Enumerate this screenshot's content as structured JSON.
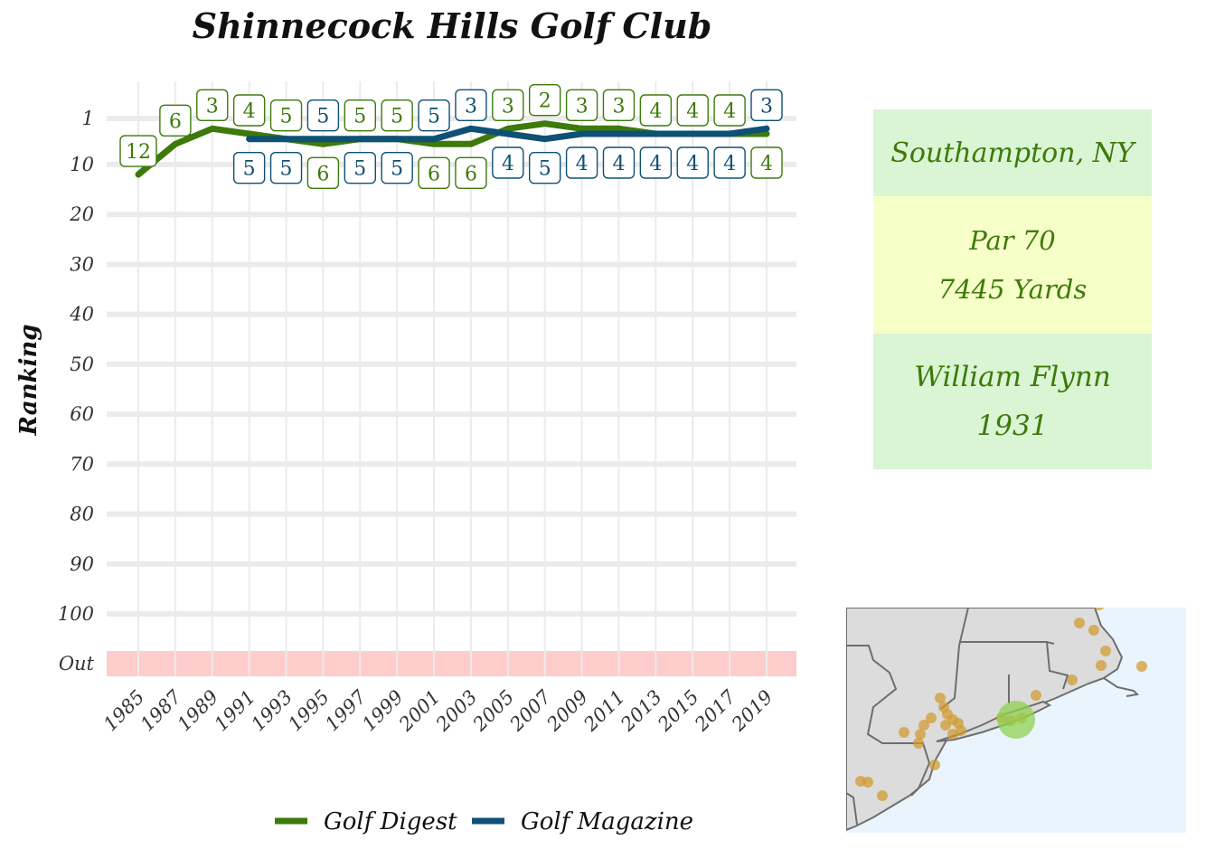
{
  "chart_data": {
    "type": "line",
    "title": "Shinnecock Hills Golf Club",
    "ylabel": "Ranking",
    "xlabel": "",
    "y_ticks": [
      "1",
      "10",
      "20",
      "30",
      "40",
      "50",
      "60",
      "70",
      "80",
      "90",
      "100",
      "Out"
    ],
    "x_ticks": [
      "1985",
      "1987",
      "1989",
      "1991",
      "1993",
      "1995",
      "1997",
      "1999",
      "2001",
      "2003",
      "2005",
      "2007",
      "2009",
      "2011",
      "2013",
      "2015",
      "2017",
      "2019"
    ],
    "series": [
      {
        "name": "Golf Digest",
        "color": "#3d7a0a",
        "x": [
          1985,
          1987,
          1989,
          1991,
          1993,
          1995,
          1997,
          1999,
          2001,
          2003,
          2005,
          2007,
          2009,
          2011,
          2013,
          2015,
          2017,
          2019
        ],
        "values": [
          12,
          6,
          3,
          4,
          5,
          6,
          5,
          5,
          6,
          6,
          3,
          2,
          3,
          3,
          4,
          4,
          4,
          4
        ],
        "labels": [
          "12",
          "6",
          "3",
          "4",
          "5",
          "6",
          "5",
          "5",
          "6",
          "6",
          "3",
          "2",
          "3",
          "3",
          "4",
          "4",
          "4",
          "4"
        ]
      },
      {
        "name": "Golf Magazine",
        "color": "#0f5075",
        "x": [
          1991,
          1993,
          1995,
          1997,
          1999,
          2001,
          2003,
          2005,
          2007,
          2009,
          2011,
          2013,
          2015,
          2017,
          2019
        ],
        "values": [
          5,
          5,
          5,
          5,
          5,
          5,
          3,
          4,
          5,
          4,
          4,
          4,
          4,
          4,
          3
        ],
        "labels": [
          "5",
          "5",
          "5",
          "5",
          "5",
          "5",
          "3",
          "4",
          "5",
          "4",
          "4",
          "4",
          "4",
          "4",
          "3"
        ]
      }
    ],
    "out_band_color": "#ffcccc",
    "grid": true,
    "legend_position": "bottom"
  },
  "info": {
    "location": "Southampton, NY",
    "par": "Par 70",
    "yards": "7445 Yards",
    "architect": "William Flynn",
    "year": "1931"
  },
  "map": {
    "land_color": "#dcdcdc",
    "water_color": "#eaf4fc",
    "border_color": "#6e6e6e",
    "course_color": "#d19a2e",
    "highlight_color": "#8fd14f"
  }
}
